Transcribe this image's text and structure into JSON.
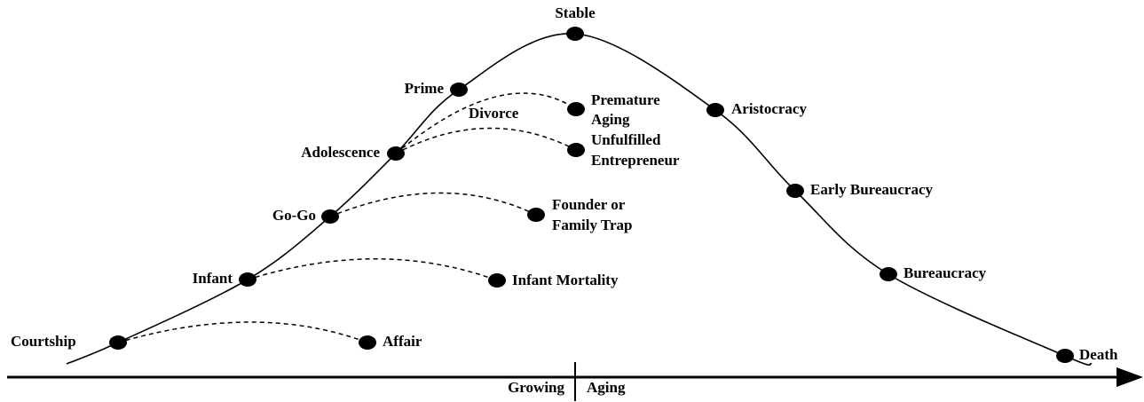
{
  "stages": [
    "Courtship",
    "Infant",
    "Go-Go",
    "Adolescence",
    "Prime",
    "Stable",
    "Aristocracy",
    "Early Bureaucracy",
    "Bureaucracy",
    "Death"
  ],
  "failures": [
    {
      "lines": [
        "Affair"
      ]
    },
    {
      "lines": [
        "Infant Mortality"
      ]
    },
    {
      "lines": [
        "Founder or",
        "Family Trap"
      ]
    },
    {
      "lines": [
        "Unfulfilled",
        "Entrepreneur"
      ]
    },
    {
      "lines": [
        "Premature",
        "Aging"
      ]
    }
  ],
  "annotation": "Divorce",
  "axis": {
    "left": "Growing",
    "right": "Aging"
  }
}
